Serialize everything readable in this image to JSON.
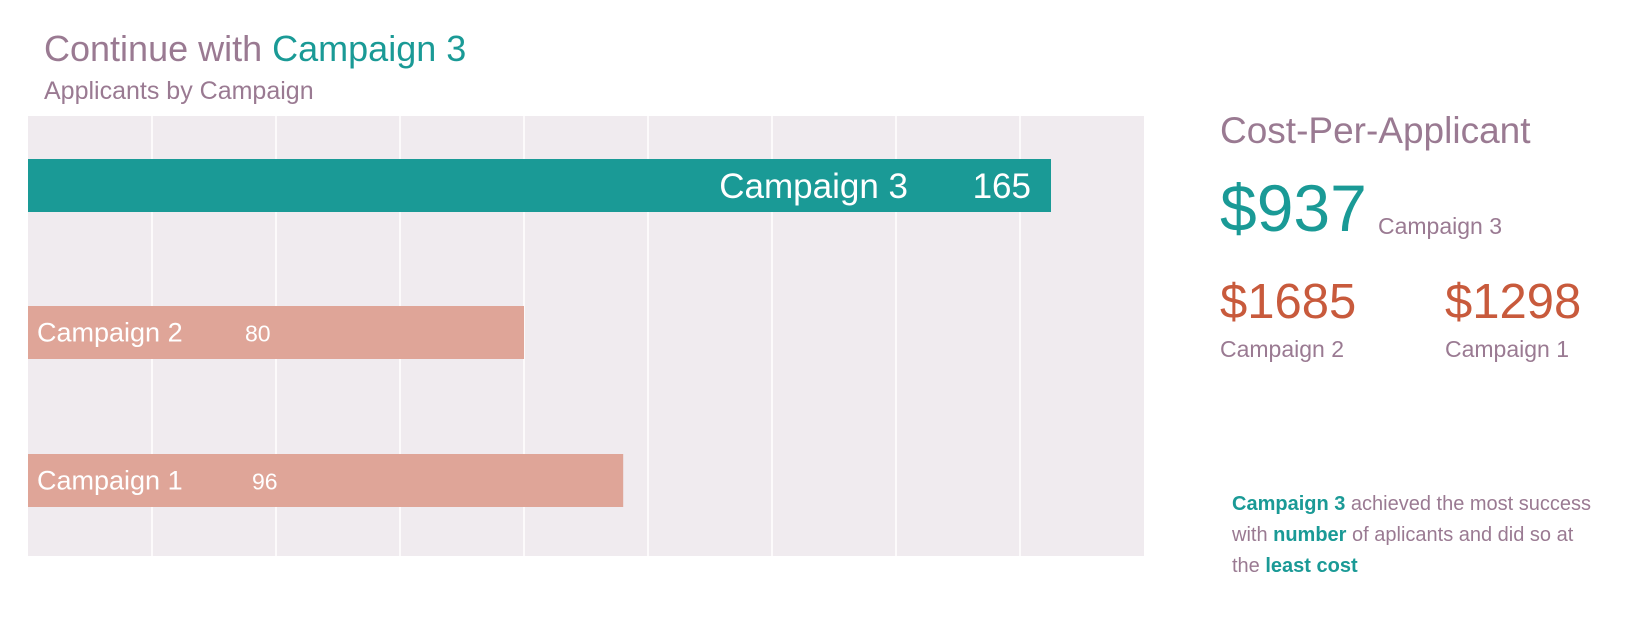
{
  "header": {
    "title_prefix": "Continue with",
    "title_accent": "Campaign 3",
    "subtitle": "Applicants by Campaign"
  },
  "colors": {
    "accent": "#1a9a96",
    "muted_bar": "#dfa598",
    "plot_bg": "#f0ebef",
    "text_muted": "#9a7a92",
    "cost_red": "#c85a3c"
  },
  "chart_data": {
    "type": "bar",
    "orientation": "horizontal",
    "title": "Applicants by Campaign",
    "categories": [
      "Campaign 3",
      "Campaign 2",
      "Campaign 1"
    ],
    "values": [
      165,
      80,
      96
    ],
    "highlight": "Campaign 3",
    "xlim": [
      0,
      180
    ],
    "x_grid_step": 20,
    "grid": true,
    "legend": "none"
  },
  "cost_panel": {
    "heading": "Cost-Per-Applicant",
    "primary": {
      "value": "$937",
      "label": "Campaign 3"
    },
    "secondary": [
      {
        "value": "$1685",
        "label": "Campaign 2"
      },
      {
        "value": "$1298",
        "label": "Campaign 1"
      }
    ]
  },
  "note": {
    "part1_bold": "Campaign 3",
    "part2": " achieved the most success with ",
    "part3_bold": "number",
    "part4": " of aplicants and did so at the ",
    "part5_bold": "least cost"
  }
}
